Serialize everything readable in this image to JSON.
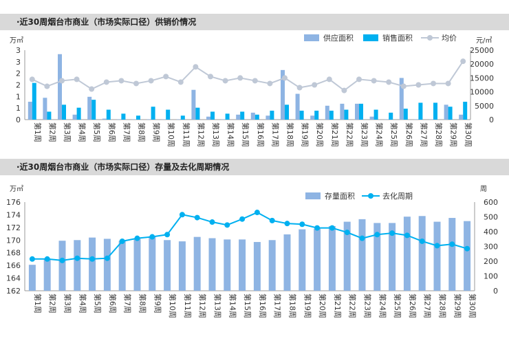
{
  "chart_data": [
    {
      "type": "bar",
      "title": "·近30周烟台市商业（市场实际口径）供销价情况",
      "y_left_unit": "万㎡",
      "y_right_unit": "元/㎡",
      "y_left_ticks": [
        "0",
        "1",
        "1",
        "2",
        "2",
        "3",
        "3"
      ],
      "y_left_max": 3.5,
      "y_right_ticks": [
        "0",
        "5000",
        "10000",
        "15000",
        "20000",
        "25000"
      ],
      "y_right_max": 25000,
      "categories": [
        "第1周",
        "第2周",
        "第3周",
        "第4周",
        "第5周",
        "第6周",
        "第7周",
        "第8周",
        "第9周",
        "第10周",
        "第11周",
        "第12周",
        "第13周",
        "第14周",
        "第15周",
        "第16周",
        "第17周",
        "第18周",
        "第19周",
        "第20周",
        "第21周",
        "第22周",
        "第23周",
        "第24周",
        "第25周",
        "第26周",
        "第27周",
        "第28周",
        "第29周",
        "第30周"
      ],
      "series": [
        {
          "name": "供应面积",
          "kind": "bar",
          "axis": "left",
          "color": "#8eb4e3",
          "values": [
            0.9,
            1.1,
            3.3,
            0.25,
            1.15,
            0.05,
            0.02,
            0.02,
            0.02,
            0.02,
            0.02,
            1.5,
            0.15,
            0.02,
            0.25,
            0.35,
            0.2,
            2.5,
            1.3,
            0.2,
            0.7,
            0.8,
            0.8,
            0.15,
            0.02,
            2.1,
            0.02,
            0.02,
            0.75,
            0.25
          ]
        },
        {
          "name": "销售面积",
          "kind": "bar",
          "axis": "left",
          "color": "#00b0f0",
          "values": [
            1.85,
            0.4,
            0.75,
            0.6,
            1.0,
            0.5,
            0.3,
            0.2,
            0.65,
            0.5,
            0.2,
            0.6,
            0.4,
            0.3,
            0.4,
            0.25,
            0.45,
            0.75,
            0.45,
            0.45,
            0.45,
            0.5,
            0.8,
            0.5,
            0.35,
            0.55,
            0.85,
            0.85,
            0.65,
            0.9
          ]
        },
        {
          "name": "均价",
          "kind": "line",
          "axis": "right",
          "color": "#bfc8d6",
          "values": [
            14500,
            12000,
            14000,
            14500,
            11000,
            13500,
            14000,
            13000,
            14000,
            15500,
            13500,
            19000,
            15500,
            14000,
            15000,
            14000,
            13000,
            15000,
            11500,
            12500,
            14500,
            10500,
            14500,
            14000,
            13500,
            12000,
            12500,
            13000,
            13000,
            21000
          ]
        }
      ]
    },
    {
      "type": "bar",
      "title": "·近30周烟台市商业（市场实际口径）存量及去化周期情况",
      "y_left_unit": "万㎡",
      "y_right_unit": "周",
      "y_left_ticks": [
        "162",
        "164",
        "166",
        "168",
        "170",
        "172",
        "174",
        "176"
      ],
      "y_left_min": 162,
      "y_left_max": 176,
      "y_right_ticks": [
        "0",
        "100",
        "200",
        "300",
        "400",
        "500",
        "600"
      ],
      "y_right_max": 600,
      "categories": [
        "第1周",
        "第2周",
        "第3周",
        "第4周",
        "第5周",
        "第6周",
        "第7周",
        "第8周",
        "第9周",
        "第10周",
        "第11周",
        "第12周",
        "第13周",
        "第14周",
        "第15周",
        "第16周",
        "第17周",
        "第18周",
        "第19周",
        "第20周",
        "第21周",
        "第22周",
        "第23周",
        "第24周",
        "第25周",
        "第26周",
        "第27周",
        "第28周",
        "第29周",
        "第30周"
      ],
      "series": [
        {
          "name": "存量面积",
          "kind": "bar",
          "axis": "left",
          "color": "#8eb4e3",
          "values": [
            166.1,
            167.0,
            169.9,
            170.0,
            170.4,
            170.2,
            169.9,
            170.2,
            170.6,
            170.0,
            169.8,
            170.5,
            170.3,
            170.1,
            170.1,
            169.7,
            170.0,
            170.9,
            171.7,
            171.8,
            172.2,
            172.9,
            173.3,
            172.7,
            172.7,
            173.7,
            173.8,
            172.9,
            173.5,
            173.0
          ]
        },
        {
          "name": "去化周期",
          "kind": "line",
          "axis": "right",
          "color": "#00b0f0",
          "values": [
            215,
            215,
            205,
            220,
            215,
            220,
            335,
            355,
            365,
            380,
            515,
            495,
            465,
            445,
            485,
            530,
            475,
            455,
            450,
            425,
            425,
            395,
            355,
            380,
            390,
            375,
            335,
            305,
            315,
            285
          ]
        }
      ]
    }
  ]
}
